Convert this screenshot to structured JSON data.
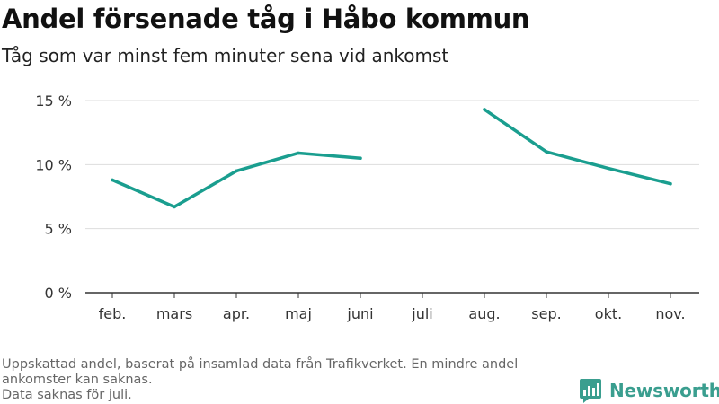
{
  "chart_data": {
    "type": "line",
    "title": "Andel försenade tåg i Håbo kommun",
    "subtitle": "Tåg som var minst fem minuter sena vid ankomst",
    "categories": [
      "feb.",
      "mars",
      "apr.",
      "maj",
      "juni",
      "juli",
      "aug.",
      "sep.",
      "okt.",
      "nov."
    ],
    "series": [
      {
        "values": [
          8.8,
          6.7,
          9.5,
          10.9,
          10.5,
          null,
          14.3,
          11.0,
          9.7,
          8.5
        ]
      }
    ],
    "yticks": [
      0,
      5,
      10,
      15
    ],
    "ytick_labels": [
      "0 %",
      "5 %",
      "10 %",
      "15 %"
    ],
    "ylim": [
      0,
      15
    ],
    "xlabel": "",
    "ylabel": "",
    "grid": true,
    "line_color": "#1a9e8f"
  },
  "footnote": {
    "lines": [
      "Uppskattad andel, baserat på insamlad data från Trafikverket. En mindre andel ankomster kan saknas.",
      "Data saknas för juli."
    ]
  },
  "brand": {
    "name": "Newsworthy",
    "icon": "newsworthy-logo-icon",
    "color": "#3a9e8f"
  }
}
